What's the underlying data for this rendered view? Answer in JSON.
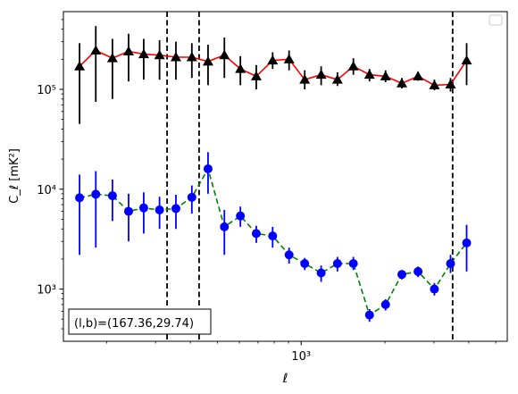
{
  "chart_data": {
    "type": "scatter",
    "xscale": "log",
    "yscale": "log",
    "xlim": [
      140,
      5500
    ],
    "ylim": [
      300,
      600000
    ],
    "xlabel": "ℓ",
    "ylabel": "C_ℓ  [mK²]",
    "x_ticks": [
      {
        "value": 1000,
        "label": "10³"
      }
    ],
    "y_ticks": [
      {
        "value": 1000,
        "label": "10³"
      },
      {
        "value": 10000,
        "label": "10⁴"
      },
      {
        "value": 100000,
        "label": "10⁵"
      }
    ],
    "legend_location": "upper right",
    "legend_entries": [],
    "annotation": "(l,b)=(167.36,29.74)",
    "vlines_dashed": [
      330,
      430,
      3500
    ],
    "series": [
      {
        "color": "#000000",
        "line_color": "#ff0000",
        "line_style": "solid",
        "marker": "triangle",
        "points": [
          {
            "x": 160,
            "y": 170000,
            "lo": 45000,
            "hi": 290000
          },
          {
            "x": 183,
            "y": 245000,
            "lo": 75000,
            "hi": 430000
          },
          {
            "x": 210,
            "y": 205000,
            "lo": 80000,
            "hi": 320000
          },
          {
            "x": 240,
            "y": 240000,
            "lo": 120000,
            "hi": 360000
          },
          {
            "x": 272,
            "y": 225000,
            "lo": 125000,
            "hi": 320000
          },
          {
            "x": 310,
            "y": 220000,
            "lo": 125000,
            "hi": 310000
          },
          {
            "x": 355,
            "y": 210000,
            "lo": 125000,
            "hi": 300000
          },
          {
            "x": 405,
            "y": 210000,
            "lo": 130000,
            "hi": 290000
          },
          {
            "x": 463,
            "y": 190000,
            "lo": 110000,
            "hi": 280000
          },
          {
            "x": 530,
            "y": 220000,
            "lo": 130000,
            "hi": 330000
          },
          {
            "x": 605,
            "y": 160000,
            "lo": 110000,
            "hi": 215000
          },
          {
            "x": 690,
            "y": 135000,
            "lo": 100000,
            "hi": 175000
          },
          {
            "x": 790,
            "y": 195000,
            "lo": 160000,
            "hi": 235000
          },
          {
            "x": 905,
            "y": 200000,
            "lo": 155000,
            "hi": 245000
          },
          {
            "x": 1030,
            "y": 125000,
            "lo": 100000,
            "hi": 155000
          },
          {
            "x": 1180,
            "y": 140000,
            "lo": 110000,
            "hi": 170000
          },
          {
            "x": 1350,
            "y": 125000,
            "lo": 108000,
            "hi": 148000
          },
          {
            "x": 1540,
            "y": 170000,
            "lo": 140000,
            "hi": 205000
          },
          {
            "x": 1760,
            "y": 140000,
            "lo": 120000,
            "hi": 160000
          },
          {
            "x": 2010,
            "y": 135000,
            "lo": 118000,
            "hi": 155000
          },
          {
            "x": 2300,
            "y": 115000,
            "lo": 102000,
            "hi": 130000
          },
          {
            "x": 2630,
            "y": 135000,
            "lo": 122000,
            "hi": 150000
          },
          {
            "x": 3010,
            "y": 110000,
            "lo": 98000,
            "hi": 125000
          },
          {
            "x": 3440,
            "y": 112000,
            "lo": 95000,
            "hi": 130000
          },
          {
            "x": 3930,
            "y": 195000,
            "lo": 110000,
            "hi": 290000
          }
        ]
      },
      {
        "color": "#0000ff",
        "line_color": "#008000",
        "line_style": "dashed",
        "marker": "circle",
        "points": [
          {
            "x": 160,
            "y": 8200,
            "lo": 2200,
            "hi": 14000
          },
          {
            "x": 183,
            "y": 8900,
            "lo": 2600,
            "hi": 15200
          },
          {
            "x": 210,
            "y": 8600,
            "lo": 4800,
            "hi": 12500
          },
          {
            "x": 240,
            "y": 6000,
            "lo": 3000,
            "hi": 9000
          },
          {
            "x": 272,
            "y": 6500,
            "lo": 3600,
            "hi": 9300
          },
          {
            "x": 310,
            "y": 6200,
            "lo": 4000,
            "hi": 8400
          },
          {
            "x": 355,
            "y": 6400,
            "lo": 4000,
            "hi": 8800
          },
          {
            "x": 405,
            "y": 8300,
            "lo": 5700,
            "hi": 10900
          },
          {
            "x": 463,
            "y": 16000,
            "lo": 9000,
            "hi": 23500
          },
          {
            "x": 530,
            "y": 4200,
            "lo": 2200,
            "hi": 6200
          },
          {
            "x": 605,
            "y": 5400,
            "lo": 4200,
            "hi": 6700
          },
          {
            "x": 690,
            "y": 3600,
            "lo": 2900,
            "hi": 4300
          },
          {
            "x": 790,
            "y": 3400,
            "lo": 2600,
            "hi": 4200
          },
          {
            "x": 905,
            "y": 2200,
            "lo": 1800,
            "hi": 2600
          },
          {
            "x": 1030,
            "y": 1800,
            "lo": 1550,
            "hi": 2050
          },
          {
            "x": 1180,
            "y": 1450,
            "lo": 1180,
            "hi": 1720
          },
          {
            "x": 1350,
            "y": 1800,
            "lo": 1500,
            "hi": 2100
          },
          {
            "x": 1540,
            "y": 1800,
            "lo": 1550,
            "hi": 2100
          },
          {
            "x": 1760,
            "y": 550,
            "lo": 470,
            "hi": 630
          },
          {
            "x": 2010,
            "y": 700,
            "lo": 610,
            "hi": 790
          },
          {
            "x": 2300,
            "y": 1400,
            "lo": 1250,
            "hi": 1550
          },
          {
            "x": 2630,
            "y": 1500,
            "lo": 1320,
            "hi": 1680
          },
          {
            "x": 3010,
            "y": 1000,
            "lo": 860,
            "hi": 1150
          },
          {
            "x": 3440,
            "y": 1800,
            "lo": 1450,
            "hi": 2200
          },
          {
            "x": 3930,
            "y": 2900,
            "lo": 1500,
            "hi": 4400
          }
        ]
      }
    ]
  }
}
